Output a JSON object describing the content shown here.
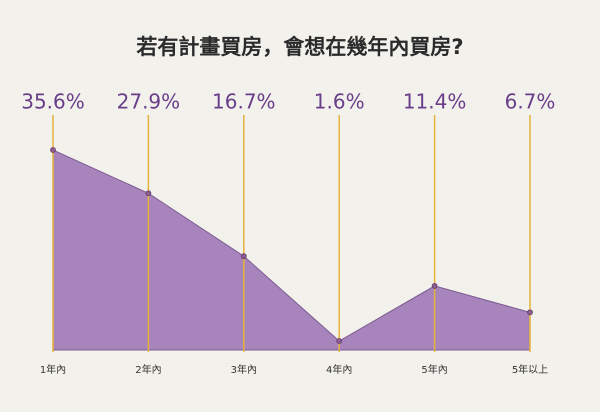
{
  "chart_data": {
    "type": "area",
    "title": "若有計畫買房，會想在幾年內買房?",
    "categories": [
      "1年內",
      "2年內",
      "3年內",
      "4年內",
      "5年內",
      "5年以上"
    ],
    "values": [
      35.6,
      27.9,
      16.7,
      1.6,
      11.4,
      6.7
    ],
    "value_labels": [
      "35.6%",
      "27.9%",
      "16.7%",
      "1.6%",
      "11.4%",
      "6.7%"
    ],
    "color": "#a884bc"
  }
}
